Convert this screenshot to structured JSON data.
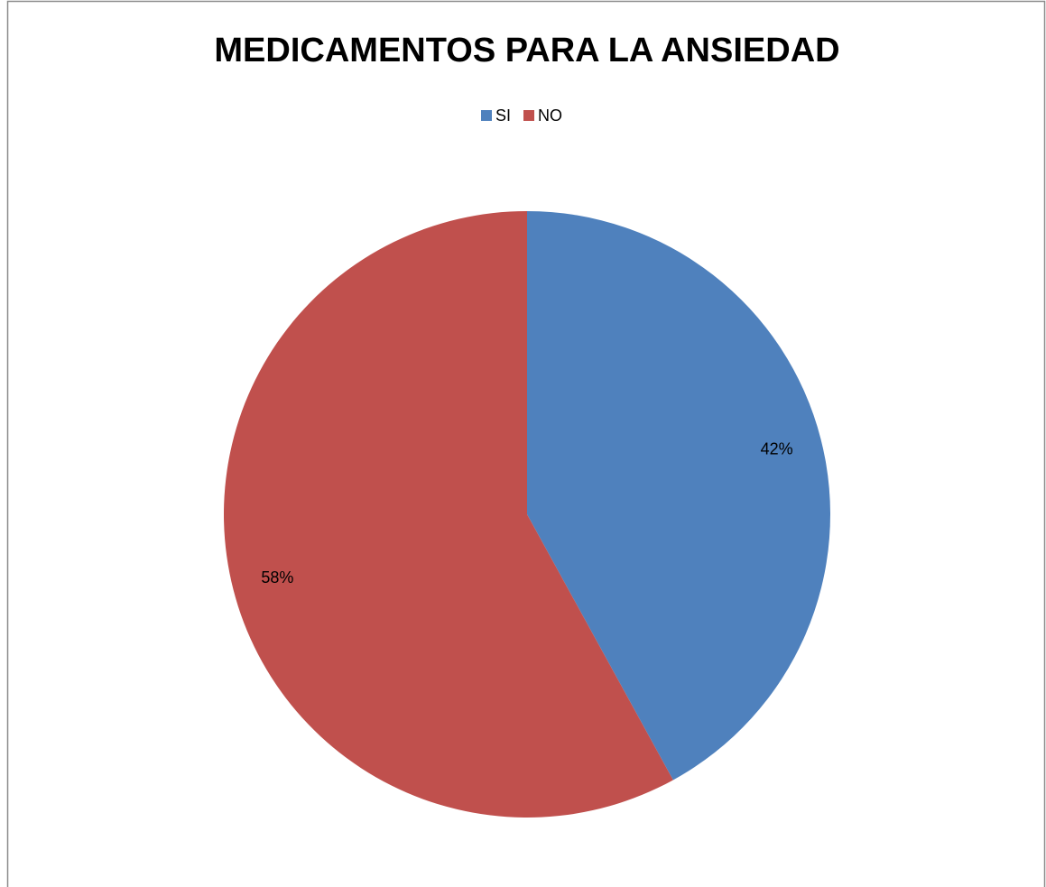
{
  "chart_data": {
    "type": "pie",
    "title": "MEDICAMENTOS PARA LA ANSIEDAD",
    "categories": [
      "SI",
      "NO"
    ],
    "values": [
      42,
      58
    ],
    "value_labels": [
      "42%",
      "58%"
    ],
    "colors": [
      "#4f81bd",
      "#c0504d"
    ],
    "legend": "top"
  }
}
